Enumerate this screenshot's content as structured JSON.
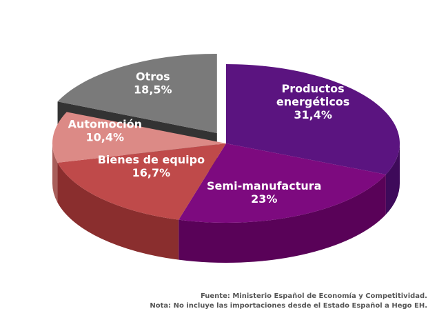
{
  "chart_data": {
    "type": "pie",
    "style": "3d-exploded",
    "slices": [
      {
        "label": [
          "Productos",
          "energéticos"
        ],
        "percent_label": "31,4%",
        "value": 31.4,
        "color": "#5b1480",
        "side": "#3e0a5a"
      },
      {
        "label": [
          "Semi-manufactura"
        ],
        "percent_label": "23%",
        "value": 23,
        "color": "#7d0a7f",
        "side": "#590258"
      },
      {
        "label": [
          "Bienes de equipo"
        ],
        "percent_label": "16,7%",
        "value": 16.7,
        "color": "#bf4a4a",
        "side": "#8a2e2e"
      },
      {
        "label": [
          "Automoción"
        ],
        "percent_label": "10,4%",
        "value": 10.4,
        "color": "#dc8a86",
        "side": "#a85e5a"
      },
      {
        "label": [
          "Otros"
        ],
        "percent_label": "18,5%",
        "value": 18.5,
        "color": "#7a7a7a",
        "side": "#333333"
      }
    ]
  },
  "notes": {
    "source": "Fuente: Ministerio Español de Economía y Competitividad.",
    "extra": "Nota: No incluye las importaciones desde el Estado Español a Hego EH."
  }
}
